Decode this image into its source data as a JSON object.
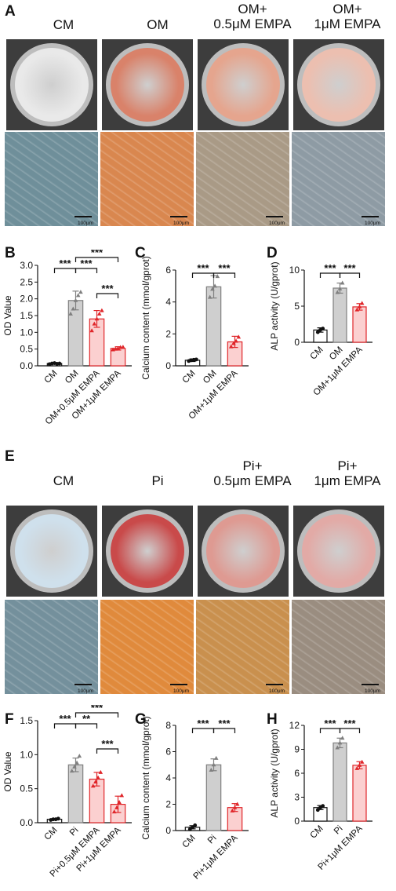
{
  "panels": {
    "A": "A",
    "B": "B",
    "C": "C",
    "D": "D",
    "E": "E",
    "F": "F",
    "G": "G",
    "H": "H"
  },
  "panelA": {
    "headers": [
      {
        "l1": "CM",
        "l2": ""
      },
      {
        "l1": "OM",
        "l2": ""
      },
      {
        "l1": "OM+",
        "l2": "0.5μM EMPA"
      },
      {
        "l1": "OM+",
        "l2": "1μM EMPA"
      }
    ],
    "scale": "100μm",
    "colors": {
      "dish": [
        "#e9e9e9",
        "#d9826a",
        "#e5a58e",
        "#ecbfb0"
      ],
      "micro": [
        "#6f8f9a",
        "#d9874f",
        "#a99a86",
        "#8e9ba4"
      ]
    }
  },
  "panelE": {
    "headers": [
      {
        "l1": "CM",
        "l2": ""
      },
      {
        "l1": "Pi",
        "l2": ""
      },
      {
        "l1": "Pi+",
        "l2": "0.5μm EMPA"
      },
      {
        "l1": "Pi+",
        "l2": "1μm EMPA"
      }
    ],
    "scale": "100μm",
    "colors": {
      "dish": [
        "#cfe0ec",
        "#c94a4a",
        "#de9a92",
        "#e2aaa6"
      ],
      "micro": [
        "#74909c",
        "#e08a3c",
        "#c9904e",
        "#9a8d80"
      ]
    }
  },
  "chart_data": [
    {
      "id": "B",
      "type": "bar",
      "ylabel": "OD Value",
      "ylim": [
        0,
        3.0
      ],
      "yticks": [
        "0.0",
        "0.5",
        "1.0",
        "1.5",
        "2.0",
        "2.5",
        "3.0"
      ],
      "categories": [
        "CM",
        "OM",
        "OM+0.5μM EMPA",
        "OM+1μM EMPA"
      ],
      "values": [
        0.07,
        1.95,
        1.4,
        0.52
      ],
      "errors": [
        0.02,
        0.28,
        0.25,
        0.05
      ],
      "points": [
        [
          0.05,
          0.07,
          0.08,
          0.06,
          0.07
        ],
        [
          1.55,
          1.7,
          1.95,
          2.1,
          2.2
        ],
        [
          1.05,
          1.25,
          1.4,
          1.55,
          1.65
        ],
        [
          0.48,
          0.5,
          0.52,
          0.55,
          0.56
        ]
      ],
      "colors": [
        "#111111",
        "#7f7f7f",
        "#e0262a",
        "#e0262a"
      ],
      "fills": [
        "#ffffff",
        "#cfcfcf",
        "#fbd0d0",
        "#fbd0d0"
      ],
      "sig": [
        {
          "a": 0,
          "b": 1,
          "label": "***",
          "level": 0
        },
        {
          "a": 1,
          "b": 2,
          "label": "***",
          "level": 0
        },
        {
          "a": 2,
          "b": 3,
          "label": "***",
          "level": 1
        },
        {
          "a": 1,
          "b": 3,
          "label": "***",
          "level": 2
        }
      ]
    },
    {
      "id": "C",
      "type": "bar",
      "ylabel": "Calcium content (mmol/gprot)",
      "ylim": [
        0,
        6
      ],
      "yticks": [
        "0",
        "2",
        "4",
        "6"
      ],
      "categories": [
        "CM",
        "OM",
        "OM+1μM EMPA"
      ],
      "values": [
        0.35,
        4.95,
        1.5
      ],
      "errors": [
        0.08,
        0.7,
        0.35
      ],
      "points": [
        [
          0.3,
          0.35,
          0.38,
          0.4
        ],
        [
          4.3,
          4.8,
          5.0,
          5.6
        ],
        [
          1.2,
          1.4,
          1.55,
          1.8
        ]
      ],
      "colors": [
        "#111111",
        "#7f7f7f",
        "#e0262a"
      ],
      "fills": [
        "#ffffff",
        "#cfcfcf",
        "#fbd0d0"
      ],
      "sig": [
        {
          "a": 0,
          "b": 1,
          "label": "***",
          "level": 0
        },
        {
          "a": 1,
          "b": 2,
          "label": "***",
          "level": 0
        }
      ]
    },
    {
      "id": "D",
      "type": "bar",
      "ylabel": "ALP activity (U/gprot)",
      "ylim": [
        0,
        10
      ],
      "yticks": [
        "0",
        "5",
        "10"
      ],
      "categories": [
        "CM",
        "OM",
        "OM+1μM EMPA"
      ],
      "values": [
        1.7,
        7.5,
        4.9
      ],
      "errors": [
        0.3,
        0.7,
        0.45
      ],
      "points": [
        [
          1.4,
          1.7,
          1.9
        ],
        [
          6.9,
          7.4,
          8.2
        ],
        [
          4.5,
          4.9,
          5.4
        ]
      ],
      "colors": [
        "#111111",
        "#7f7f7f",
        "#e0262a"
      ],
      "fills": [
        "#ffffff",
        "#cfcfcf",
        "#fbd0d0"
      ],
      "sig": [
        {
          "a": 0,
          "b": 1,
          "label": "***",
          "level": 0
        },
        {
          "a": 1,
          "b": 2,
          "label": "***",
          "level": 0
        }
      ]
    },
    {
      "id": "F",
      "type": "bar",
      "ylabel": "OD Value",
      "ylim": [
        0,
        1.5
      ],
      "yticks": [
        "0.0",
        "0.5",
        "1.0",
        "1.5"
      ],
      "categories": [
        "CM",
        "Pi",
        "Pi+0.5μM EMPA",
        "Pi+1μM EMPA"
      ],
      "values": [
        0.05,
        0.85,
        0.64,
        0.27
      ],
      "errors": [
        0.01,
        0.1,
        0.1,
        0.12
      ],
      "points": [
        [
          0.04,
          0.05,
          0.05,
          0.06
        ],
        [
          0.76,
          0.82,
          0.88,
          0.98
        ],
        [
          0.54,
          0.6,
          0.66,
          0.74
        ],
        [
          0.16,
          0.22,
          0.3,
          0.4
        ]
      ],
      "colors": [
        "#111111",
        "#7f7f7f",
        "#e0262a",
        "#e0262a"
      ],
      "fills": [
        "#ffffff",
        "#cfcfcf",
        "#fbd0d0",
        "#fbd0d0"
      ],
      "sig": [
        {
          "a": 0,
          "b": 1,
          "label": "***",
          "level": 0
        },
        {
          "a": 1,
          "b": 2,
          "label": "**",
          "level": 0
        },
        {
          "a": 2,
          "b": 3,
          "label": "***",
          "level": 1
        },
        {
          "a": 1,
          "b": 3,
          "label": "***",
          "level": 2
        }
      ]
    },
    {
      "id": "G",
      "type": "bar",
      "ylabel": "Calcium content (mmol/gprot)",
      "ylim": [
        0,
        8
      ],
      "yticks": [
        "0",
        "2",
        "4",
        "6",
        "8"
      ],
      "categories": [
        "CM",
        "Pi",
        "Pi+1μM EMPA"
      ],
      "values": [
        0.25,
        5.0,
        1.75
      ],
      "errors": [
        0.12,
        0.45,
        0.3
      ],
      "points": [
        [
          0.1,
          0.25,
          0.4
        ],
        [
          4.6,
          5.0,
          5.5
        ],
        [
          1.5,
          1.75,
          2.0
        ]
      ],
      "colors": [
        "#111111",
        "#7f7f7f",
        "#e0262a"
      ],
      "fills": [
        "#ffffff",
        "#cfcfcf",
        "#fbd0d0"
      ],
      "sig": [
        {
          "a": 0,
          "b": 1,
          "label": "***",
          "level": 0
        },
        {
          "a": 1,
          "b": 2,
          "label": "***",
          "level": 0
        }
      ]
    },
    {
      "id": "H",
      "type": "bar",
      "ylabel": "ALP activity (U/gprot)",
      "ylim": [
        0,
        12
      ],
      "yticks": [
        "0",
        "3",
        "6",
        "9",
        "12"
      ],
      "categories": [
        "CM",
        "Pi",
        "Pi+1μM EMPA"
      ],
      "values": [
        1.7,
        9.8,
        7.0
      ],
      "errors": [
        0.25,
        0.6,
        0.45
      ],
      "points": [
        [
          1.4,
          1.7,
          1.9
        ],
        [
          9.2,
          9.8,
          10.4
        ],
        [
          6.6,
          7.0,
          7.4
        ]
      ],
      "colors": [
        "#111111",
        "#7f7f7f",
        "#e0262a"
      ],
      "fills": [
        "#ffffff",
        "#cfcfcf",
        "#fbd0d0"
      ],
      "sig": [
        {
          "a": 0,
          "b": 1,
          "label": "***",
          "level": 0
        },
        {
          "a": 1,
          "b": 2,
          "label": "***",
          "level": 0
        }
      ]
    }
  ]
}
